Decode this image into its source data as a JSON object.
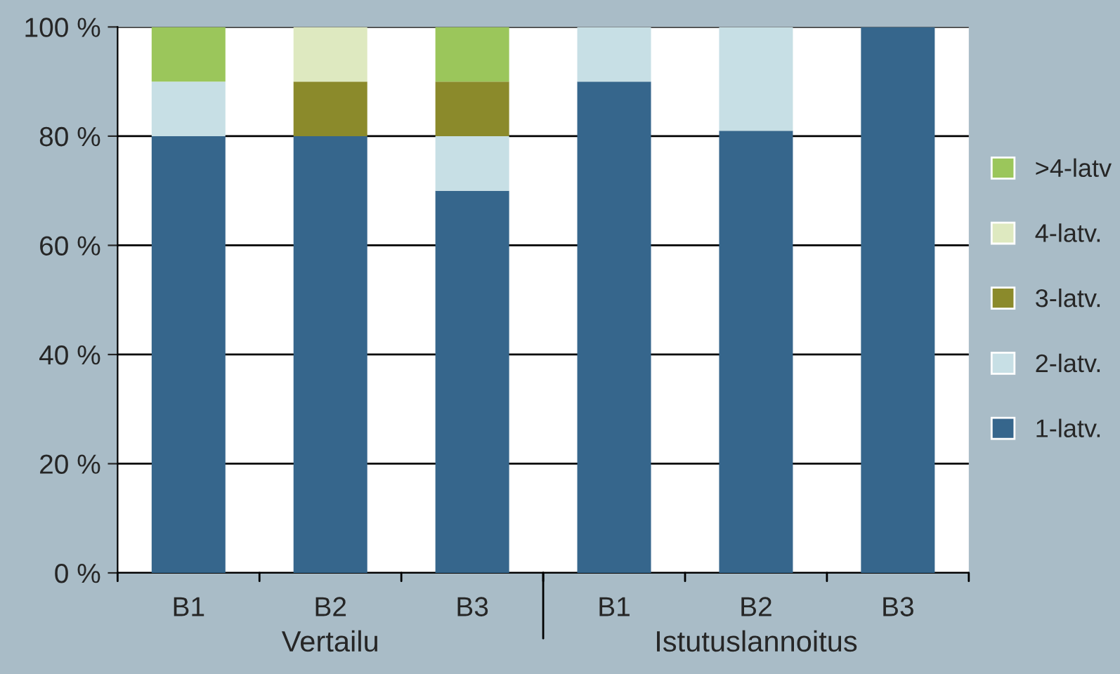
{
  "chart_data": {
    "type": "bar",
    "stacked": true,
    "categories": [
      "B1",
      "B2",
      "B3",
      "B1",
      "B2",
      "B3"
    ],
    "series": [
      {
        "name": "1-latv.",
        "color": "#36668c",
        "values": [
          80,
          80,
          70,
          90,
          81,
          100
        ]
      },
      {
        "name": "2-latv.",
        "color": "#c7dfe5",
        "values": [
          10,
          0,
          10,
          10,
          19,
          0
        ]
      },
      {
        "name": "3-latv.",
        "color": "#8b8a2b",
        "values": [
          0,
          10,
          10,
          0,
          0,
          0
        ]
      },
      {
        "name": "4-latv.",
        "color": "#dee9c0",
        "values": [
          0,
          10,
          0,
          0,
          0,
          0
        ]
      },
      {
        "name": ">4-latv",
        "color": "#9bc65b",
        "values": [
          10,
          0,
          10,
          0,
          0,
          0
        ]
      }
    ],
    "ylim": [
      0,
      100
    ],
    "yticks": [
      {
        "value": 0,
        "label": "0 %"
      },
      {
        "value": 20,
        "label": "20 %"
      },
      {
        "value": 40,
        "label": "40 %"
      },
      {
        "value": 60,
        "label": "60 %"
      },
      {
        "value": 80,
        "label": "80 %"
      },
      {
        "value": 100,
        "label": "100 %"
      }
    ],
    "grid": "y",
    "legend": "right",
    "annotations": [
      "Vertailu",
      "Istutuslannoitus"
    ]
  }
}
